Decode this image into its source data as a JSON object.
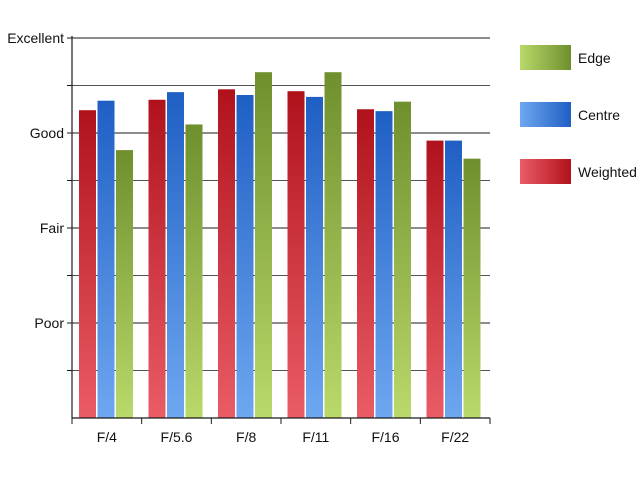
{
  "chart_data": {
    "type": "bar",
    "categories": [
      "F/4",
      "F/5.6",
      "F/8",
      "F/11",
      "F/16",
      "F/22"
    ],
    "y_tick_labels": [
      "Poor",
      "Fair",
      "Good",
      "Excellent"
    ],
    "y_tick_values": [
      1,
      2,
      3,
      4
    ],
    "ylim": [
      0,
      4
    ],
    "grid": true,
    "legend_position": "right",
    "series": [
      {
        "name": "Weighted",
        "color_top": "#b0121c",
        "color_bottom": "#ea5c66",
        "values": [
          3.24,
          3.35,
          3.46,
          3.44,
          3.25,
          2.92
        ]
      },
      {
        "name": "Centre",
        "color_top": "#1f5fc4",
        "color_bottom": "#6ea7f0",
        "values": [
          3.34,
          3.43,
          3.4,
          3.38,
          3.23,
          2.92
        ]
      },
      {
        "name": "Edge",
        "color_top": "#6f8f2e",
        "color_bottom": "#b9d96a",
        "values": [
          2.82,
          3.09,
          3.64,
          3.64,
          3.33,
          2.73
        ]
      }
    ],
    "legend_order": [
      "Edge",
      "Centre",
      "Weighted"
    ]
  }
}
